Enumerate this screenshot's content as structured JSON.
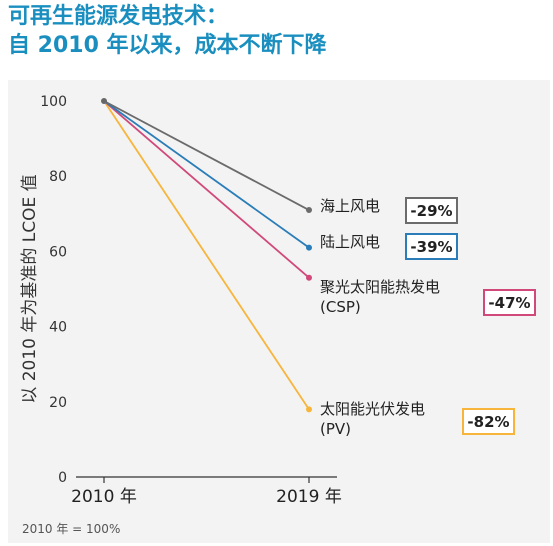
{
  "title_line1": "可再生能源发电技术：",
  "title_line2": "自  2010  年以来，成本不断下降",
  "footnote": "2010 年 = 100%",
  "chart_data": {
    "type": "line",
    "x": [
      "2010 年",
      "2019 年"
    ],
    "ylabel": "以 2010 年为基准的 LCOE 值",
    "ylim": [
      0,
      100
    ],
    "yticks": [
      0,
      20,
      40,
      60,
      80,
      100
    ],
    "grid": false,
    "series": [
      {
        "name": "海上风电",
        "values": [
          100,
          71
        ],
        "change": "-29%",
        "color": "#6b6b6b"
      },
      {
        "name": "陆上风电",
        "values": [
          100,
          61
        ],
        "change": "-39%",
        "color": "#2a7db8"
      },
      {
        "name": "聚光太阳能热发电\n(CSP)",
        "values": [
          100,
          53
        ],
        "change": "-47%",
        "color": "#d0497a"
      },
      {
        "name": "太阳能光伏发电\n(PV)",
        "values": [
          100,
          18
        ],
        "change": "-82%",
        "color": "#f7b53b"
      }
    ]
  }
}
